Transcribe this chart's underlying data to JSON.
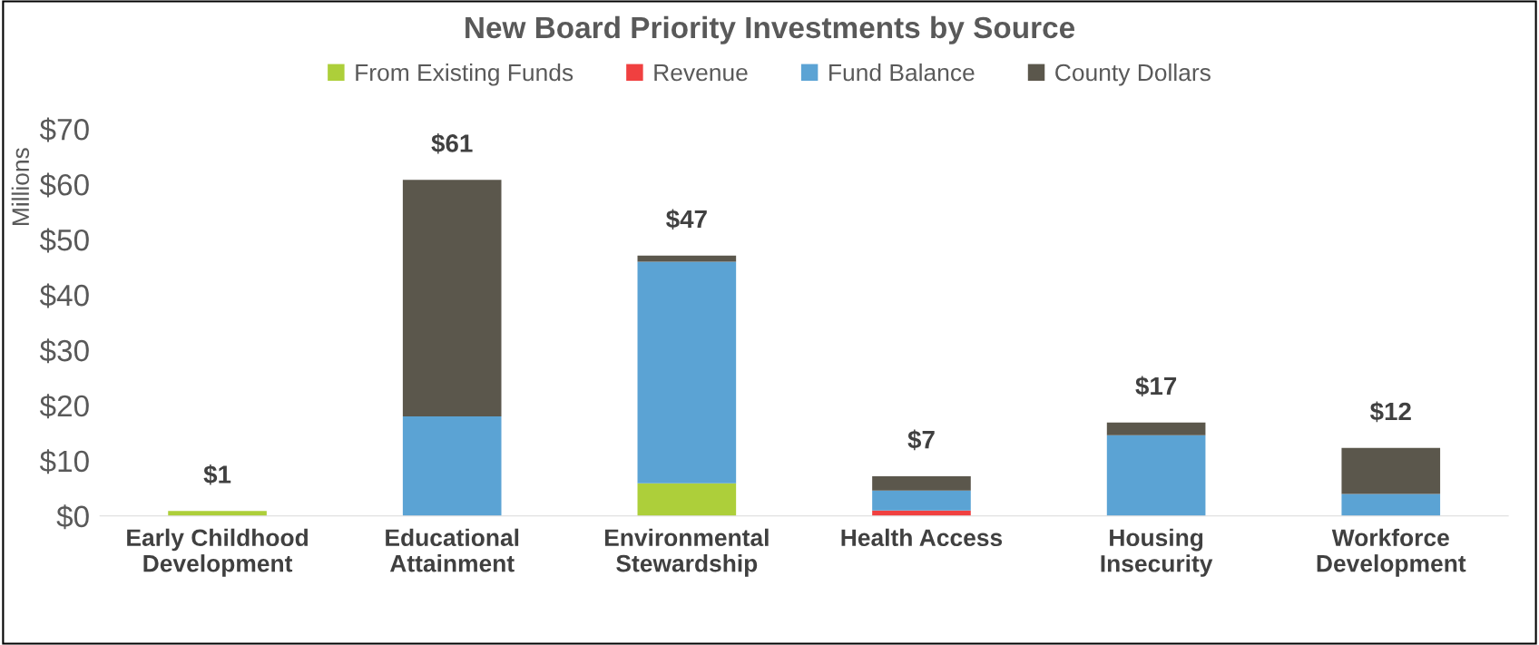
{
  "chart_data": {
    "type": "bar",
    "title": "New Board Priority Investments by Source",
    "ylabel": "Millions",
    "stacked": true,
    "legend": "top",
    "grid": false,
    "categories": [
      "Early Childhood\nDevelopment",
      "Educational\nAttainment",
      "Environmental\nStewardship",
      "Health Access",
      "Housing\nInsecurity",
      "Workforce\nDevelopment"
    ],
    "series": [
      {
        "name": "From Existing Funds",
        "color": "#adcf3a",
        "values": [
          0.9,
          0,
          5.9,
          null,
          0,
          0
        ]
      },
      {
        "name": "Revenue",
        "color": "#f04040",
        "values": [
          0,
          0,
          0,
          1.0,
          0,
          0
        ]
      },
      {
        "name": "Fund Balance",
        "color": "#5ba3d4",
        "values": [
          0,
          18,
          40.1,
          3.6,
          14.6,
          4.0
        ]
      },
      {
        "name": "County Dollars",
        "color": "#5b574c",
        "values": [
          0,
          42.8,
          1.1,
          2.6,
          2.3,
          8.3
        ]
      }
    ],
    "totals": [
      "$1",
      "$61",
      "$47",
      "$7",
      "$17",
      "$12"
    ],
    "ylim": [
      0,
      70
    ],
    "yticks": [
      {
        "value": 0,
        "label": "$0"
      },
      {
        "value": 10,
        "label": "$10"
      },
      {
        "value": 20,
        "label": "$20"
      },
      {
        "value": 30,
        "label": "$30"
      },
      {
        "value": 40,
        "label": "$40"
      },
      {
        "value": 50,
        "label": "$50"
      },
      {
        "value": 60,
        "label": "$60"
      },
      {
        "value": 70,
        "label": "$70"
      }
    ]
  }
}
